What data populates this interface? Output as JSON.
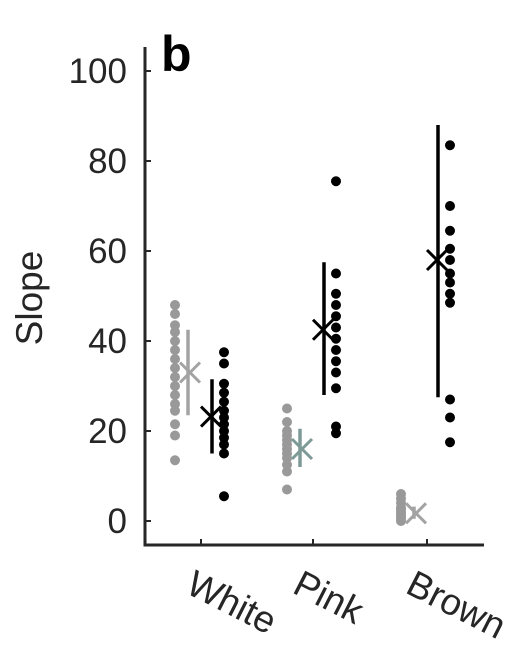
{
  "chart_data": {
    "type": "scatter",
    "panel_label": "b",
    "ylabel": "Slope",
    "xlabel": "",
    "ylim": [
      -5,
      105
    ],
    "yticks": [
      0,
      20,
      40,
      60,
      80,
      100
    ],
    "categories": [
      "White",
      "Pink",
      "Brown"
    ],
    "grid": false,
    "series": [
      {
        "group": "gray",
        "color": "#999999",
        "mean_color": "#a3a3a3",
        "points": [
          [
            13.5,
            19,
            21.5,
            24.5,
            26,
            28,
            30,
            32,
            34,
            36,
            38,
            40,
            42,
            43.5,
            46,
            48
          ],
          [
            7,
            11,
            12.5,
            14,
            15,
            16,
            17,
            18,
            19,
            20,
            22,
            25
          ],
          [
            0,
            0.5,
            1,
            1.5,
            2,
            2.5,
            3,
            4,
            5,
            6
          ]
        ],
        "mean": [
          33,
          16,
          1.7
        ],
        "err_low": [
          23.5,
          12,
          0.5
        ],
        "err_high": [
          42.5,
          20.5,
          3.2
        ],
        "mean_colors": [
          "#a3a3a3",
          "#7e9a96",
          "#a3a3a3"
        ]
      },
      {
        "group": "black",
        "color": "#000000",
        "mean_color": "#000000",
        "points": [
          [
            5.5,
            15,
            17,
            18.5,
            20,
            21.5,
            23,
            24.5,
            26.5,
            28.5,
            30.5,
            35,
            37.5
          ],
          [
            19.5,
            21,
            29.5,
            33,
            35.5,
            38,
            40.5,
            43,
            45.5,
            48,
            50.5,
            55,
            75.5
          ],
          [
            17.5,
            23,
            27,
            48.5,
            50.5,
            53,
            55,
            58,
            60.5,
            64.5,
            70,
            83.5
          ]
        ],
        "mean": [
          23.2,
          42.5,
          58
        ],
        "err_low": [
          15,
          28,
          27.5
        ],
        "err_high": [
          31.5,
          57.5,
          88
        ]
      }
    ]
  }
}
